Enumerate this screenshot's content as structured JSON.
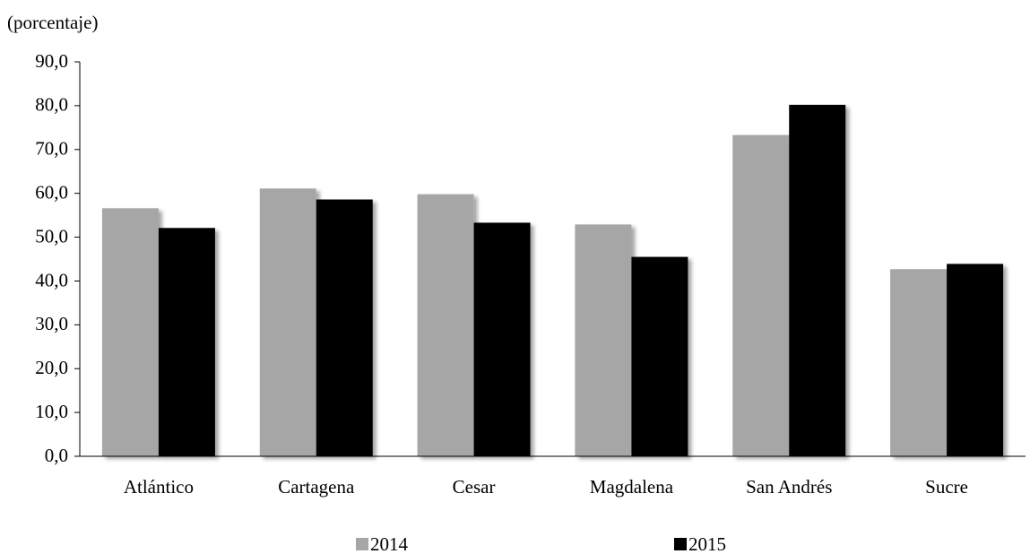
{
  "chart_data": {
    "type": "bar",
    "ylabel": "(porcentaje)",
    "ylim": [
      0,
      90
    ],
    "yticks": [
      "0,0",
      "10,0",
      "20,0",
      "30,0",
      "40,0",
      "50,0",
      "60,0",
      "70,0",
      "80,0",
      "90,0"
    ],
    "categories": [
      "Atlántico",
      "Cartagena",
      "Cesar",
      "Magdalena",
      "San Andrés",
      "Sucre"
    ],
    "series": [
      {
        "name": "2014",
        "color": "#a6a6a6",
        "values": [
          56.6,
          61.1,
          59.8,
          52.9,
          73.3,
          42.7
        ]
      },
      {
        "name": "2015",
        "color": "#000000",
        "values": [
          52.1,
          58.6,
          53.3,
          45.5,
          80.2,
          43.9
        ]
      }
    ],
    "legend": "bottom",
    "grid": false
  }
}
